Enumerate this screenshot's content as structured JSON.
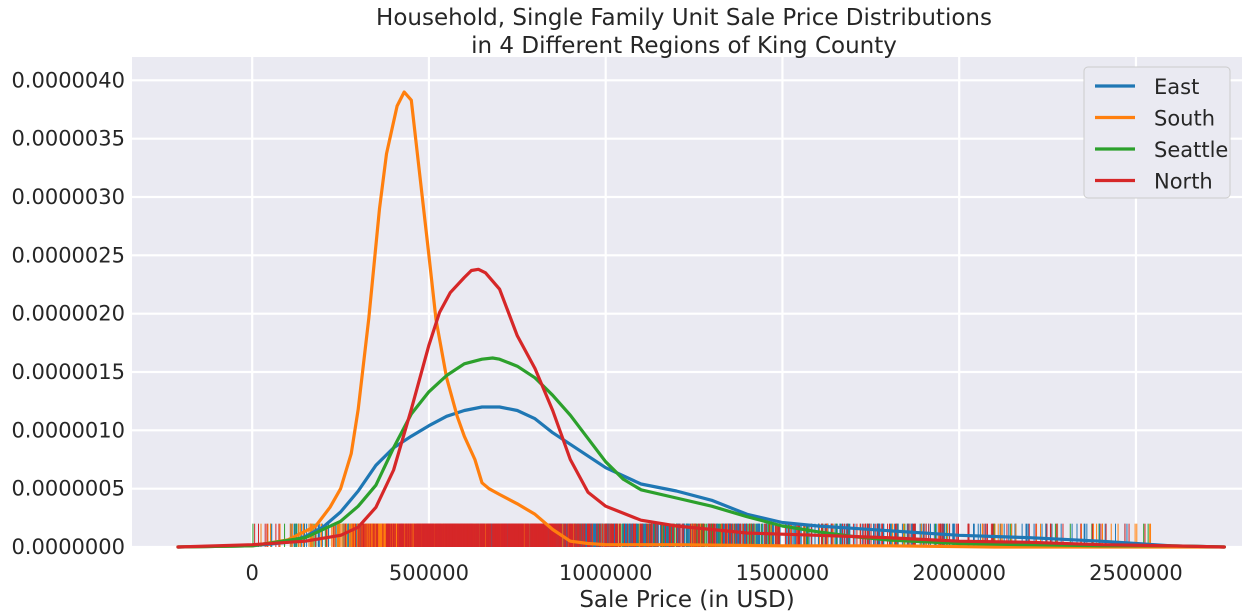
{
  "chart_data": {
    "type": "line",
    "title": "Household, Single Family Unit Sale Price Distributions",
    "subtitle": "in 4 Different Regions of King County",
    "xlabel": "Sale Price (in USD)",
    "ylabel": "",
    "xlim": [
      -340000,
      2800000
    ],
    "ylim": [
      0,
      4.2e-06
    ],
    "x_ticks": [
      0,
      500000,
      1000000,
      1500000,
      2000000,
      2500000
    ],
    "x_tick_labels": [
      "0",
      "500000",
      "1000000",
      "1500000",
      "2000000",
      "2500000"
    ],
    "y_ticks": [
      0,
      5e-07,
      1e-06,
      1.5e-06,
      2e-06,
      2.5e-06,
      3e-06,
      3.5e-06,
      4e-06
    ],
    "y_tick_labels": [
      "0.0000000",
      "0.0000005",
      "0.0000010",
      "0.0000015",
      "0.0000020",
      "0.0000025",
      "0.0000030",
      "0.0000035",
      "0.0000040"
    ],
    "grid": true,
    "legend_position": "top-right",
    "rug_height": 2e-07,
    "series": [
      {
        "name": "East",
        "color": "#1f77b4",
        "x": [
          -210000,
          0,
          100000,
          150000,
          200000,
          250000,
          300000,
          350000,
          400000,
          450000,
          500000,
          550000,
          600000,
          650000,
          700000,
          750000,
          800000,
          850000,
          900000,
          1000000,
          1100000,
          1200000,
          1300000,
          1400000,
          1500000,
          1600000,
          1700000,
          1800000,
          2000000,
          2200000,
          2400000,
          2600000,
          2750000
        ],
        "y": [
          0,
          1e-08,
          4e-08,
          9e-08,
          1.7e-07,
          3e-07,
          4.8e-07,
          7e-07,
          8.5e-07,
          9.5e-07,
          1.04e-06,
          1.12e-06,
          1.17e-06,
          1.2e-06,
          1.2e-06,
          1.17e-06,
          1.1e-06,
          9.8e-07,
          8.8e-07,
          6.8e-07,
          5.4e-07,
          4.8e-07,
          4e-07,
          2.8e-07,
          2.1e-07,
          1.8e-07,
          1.6e-07,
          1.4e-07,
          1e-07,
          8e-08,
          5e-08,
          1e-08,
          0
        ]
      },
      {
        "name": "South",
        "color": "#ff7f0e",
        "x": [
          -210000,
          0,
          100000,
          180000,
          220000,
          250000,
          280000,
          300000,
          330000,
          360000,
          380000,
          410000,
          430000,
          450000,
          470000,
          500000,
          520000,
          550000,
          580000,
          600000,
          630000,
          650000,
          670000,
          700000,
          750000,
          800000,
          850000,
          900000,
          950000,
          1000000,
          1200000,
          1500000,
          1800000,
          2100000,
          2400000,
          2750000
        ],
        "y": [
          0,
          1e-08,
          6e-08,
          1.8e-07,
          3.4e-07,
          5e-07,
          8e-07,
          1.18e-06,
          1.96e-06,
          2.9e-06,
          3.37e-06,
          3.78e-06,
          3.9e-06,
          3.83e-06,
          3.3e-06,
          2.5e-06,
          1.95e-06,
          1.45e-06,
          1.12e-06,
          9.5e-07,
          7.5e-07,
          5.5e-07,
          5e-07,
          4.5e-07,
          3.7e-07,
          2.8e-07,
          1.5e-07,
          5e-08,
          3e-08,
          2e-08,
          2e-08,
          1e-08,
          1e-08,
          0,
          0,
          0
        ]
      },
      {
        "name": "Seattle",
        "color": "#2ca02c",
        "x": [
          -210000,
          0,
          150000,
          250000,
          300000,
          350000,
          400000,
          450000,
          500000,
          550000,
          600000,
          650000,
          680000,
          700000,
          750000,
          800000,
          850000,
          900000,
          1000000,
          1050000,
          1100000,
          1200000,
          1300000,
          1400000,
          1500000,
          1600000,
          1700000,
          1800000,
          2000000,
          2200000,
          2400000,
          2600000,
          2750000
        ],
        "y": [
          0,
          1e-08,
          8e-08,
          2.2e-07,
          3.5e-07,
          5.3e-07,
          8.5e-07,
          1.14e-06,
          1.33e-06,
          1.47e-06,
          1.57e-06,
          1.61e-06,
          1.62e-06,
          1.61e-06,
          1.55e-06,
          1.45e-06,
          1.3e-06,
          1.13e-06,
          7.3e-07,
          5.8e-07,
          4.9e-07,
          4.2e-07,
          3.5e-07,
          2.6e-07,
          1.8e-07,
          1.3e-07,
          9e-08,
          6e-08,
          3e-08,
          2e-08,
          1e-08,
          1e-08,
          0
        ]
      },
      {
        "name": "North",
        "color": "#d62728",
        "x": [
          -210000,
          0,
          150000,
          250000,
          300000,
          350000,
          400000,
          450000,
          500000,
          530000,
          560000,
          600000,
          620000,
          640000,
          660000,
          700000,
          750000,
          800000,
          850000,
          900000,
          950000,
          1000000,
          1100000,
          1200000,
          1300000,
          1400000,
          1500000,
          1600000,
          1700000,
          1800000,
          2000000,
          2200000,
          2400000,
          2600000,
          2750000
        ],
        "y": [
          0,
          2e-08,
          5e-08,
          1e-07,
          1.7e-07,
          3.4e-07,
          6.6e-07,
          1.18e-06,
          1.73e-06,
          2.01e-06,
          2.18e-06,
          2.31e-06,
          2.37e-06,
          2.38e-06,
          2.35e-06,
          2.21e-06,
          1.81e-06,
          1.53e-06,
          1.17e-06,
          7.5e-07,
          4.7e-07,
          3.5e-07,
          2.3e-07,
          1.8e-07,
          1.5e-07,
          1.2e-07,
          1.1e-07,
          1e-07,
          9e-08,
          8e-08,
          5e-08,
          4e-08,
          2e-08,
          1e-08,
          0
        ]
      }
    ]
  }
}
